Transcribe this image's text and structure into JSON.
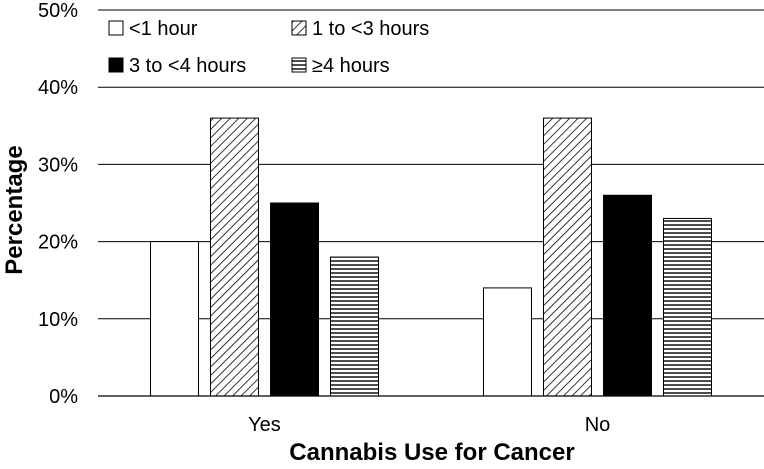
{
  "chart_data": {
    "type": "bar",
    "title": "",
    "xlabel": "Cannabis Use for Cancer",
    "ylabel": "Percentage",
    "categories": [
      "Yes",
      "No"
    ],
    "ylim": [
      0,
      50
    ],
    "yticks": [
      "0%",
      "10%",
      "20%",
      "30%",
      "40%",
      "50%"
    ],
    "grid": "horizontal",
    "legend_position": "top-left",
    "series": [
      {
        "name": "<1 hour",
        "values": [
          20,
          14
        ],
        "fill": "white"
      },
      {
        "name": "1 to <3 hours",
        "values": [
          36,
          36
        ],
        "fill": "diagonal-hatch"
      },
      {
        "name": "3 to <4 hours",
        "values": [
          25,
          26
        ],
        "fill": "black"
      },
      {
        "name": "≥4 hours",
        "values": [
          18,
          23
        ],
        "fill": "horizontal-hatch"
      }
    ]
  }
}
